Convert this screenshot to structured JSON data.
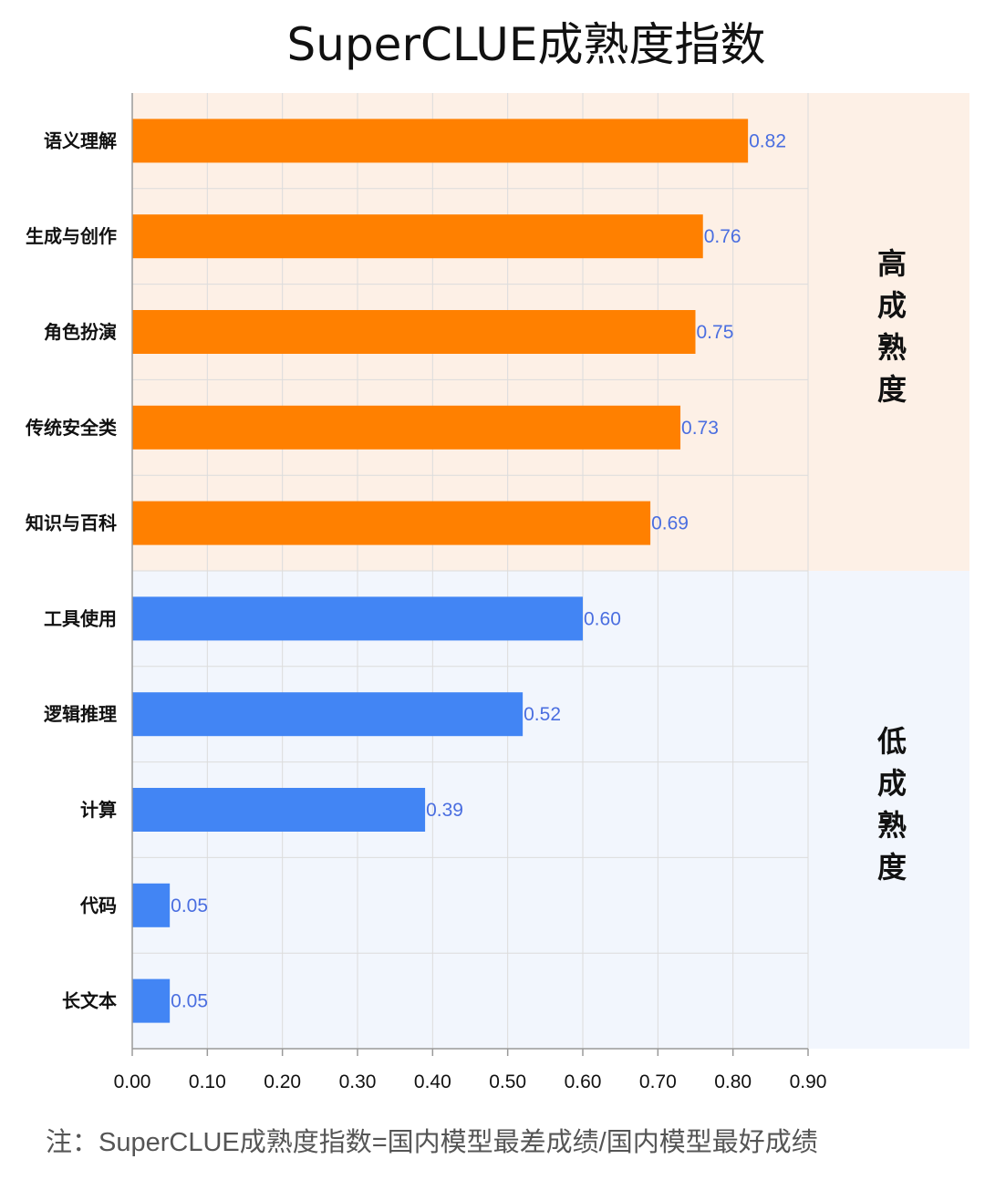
{
  "chart_data": {
    "type": "bar",
    "orientation": "horizontal",
    "title": "SuperCLUE成熟度指数",
    "categories": [
      "语义理解",
      "生成与创作",
      "角色扮演",
      "传统安全类",
      "知识与百科",
      "工具使用",
      "逻辑推理",
      "计算",
      "代码",
      "长文本"
    ],
    "values": [
      0.82,
      0.76,
      0.75,
      0.73,
      0.69,
      0.6,
      0.52,
      0.39,
      0.05,
      0.05
    ],
    "value_labels": [
      "0.82",
      "0.76",
      "0.75",
      "0.73",
      "0.69",
      "0.60",
      "0.52",
      "0.39",
      "0.05",
      "0.05"
    ],
    "xlim": [
      0,
      0.9
    ],
    "xticks": [
      "0.00",
      "0.10",
      "0.20",
      "0.30",
      "0.40",
      "0.50",
      "0.60",
      "0.70",
      "0.80",
      "0.90"
    ],
    "grid": true,
    "groups": [
      {
        "label": "高成熟度",
        "count": 5,
        "bar_color": "#ff8000",
        "band_color": "#fdf0e6"
      },
      {
        "label": "低成熟度",
        "count": 5,
        "bar_color": "#4285f4",
        "band_color": "#f2f6fd"
      }
    ],
    "value_label_color": "#4a6ee0"
  },
  "footnote": "注：SuperCLUE成熟度指数=国内模型最差成绩/国内模型最好成绩"
}
